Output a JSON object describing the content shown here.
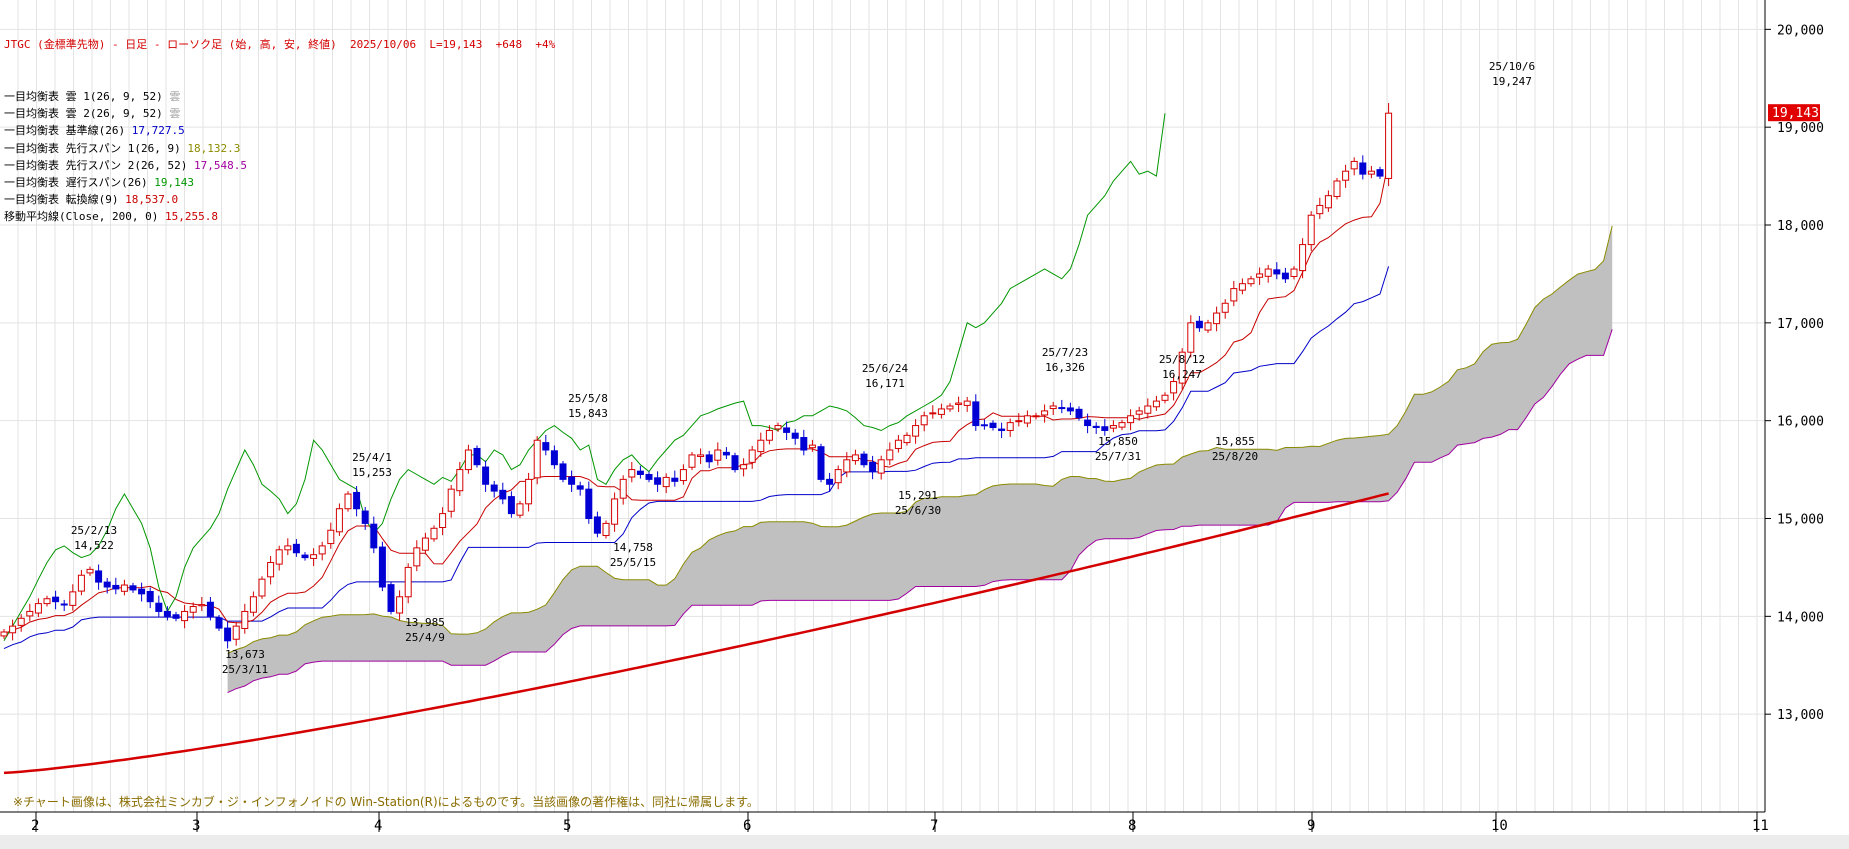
{
  "header": {
    "title": "JTGC (金標準先物) - 日足 - ローソク足 (始, 高, 安, 終値)  2025/10/06  L=19,143  +648  +4%"
  },
  "legend": [
    {
      "label": "一目均衡表 雲 1(26, 9, 52)",
      "value": "雲",
      "color": "#a0a0a0"
    },
    {
      "label": "一目均衡表 雲 2(26, 9, 52)",
      "value": "雲",
      "color": "#a0a0a0"
    },
    {
      "label": "一目均衡表 基準線(26)",
      "value": "17,727.5",
      "color": "#0000c8"
    },
    {
      "label": "一目均衡表 先行スパン 1(26, 9)",
      "value": "18,132.3",
      "color": "#8b8b00"
    },
    {
      "label": "一目均衡表 先行スパン 2(26, 52)",
      "value": "17,548.5",
      "color": "#a000a0"
    },
    {
      "label": "一目均衡表 遅行スパン(26)",
      "value": "19,143",
      "color": "#009600"
    },
    {
      "label": "一目均衡表 転換線(9)",
      "value": "18,537.0",
      "color": "#c80000"
    },
    {
      "label": "移動平均線(Close, 200, 0)",
      "value": "15,255.8",
      "color": "#c80000"
    }
  ],
  "footer_note": "※チャート画像は、株式会社ミンカブ・ジ・インフォノイドの Win-Station(R)によるものです。当該画像の著作権は、同社に帰属します。",
  "colors": {
    "bull": "#d40000",
    "bear": "#0000d4",
    "cloud": "#c0c0c0",
    "sma": "#d40000",
    "kijun": "#0000c8",
    "tenkan": "#c80000",
    "chikou": "#009600",
    "senkouA": "#8b8b00",
    "senkouB": "#a000a0"
  },
  "chart_data": {
    "type": "candlestick",
    "title": "JTGC (金標準先物) - 日足 - ローソク足 (始, 高, 安, 終値)",
    "ylim": [
      12000,
      20300
    ],
    "y_ticks": [
      "13,000",
      "14,000",
      "15,000",
      "16,000",
      "17,000",
      "18,000",
      "19,000",
      "20,000"
    ],
    "x_ticks": [
      "2",
      "3",
      "4",
      "5",
      "6",
      "7",
      "8",
      "9",
      "10",
      "11"
    ],
    "last_price_label": "19,143",
    "grid": true,
    "annotations": [
      {
        "date": "25/2/13",
        "value": "14,522",
        "pos": "above"
      },
      {
        "date": "25/3/11",
        "value": "13,673",
        "pos": "below"
      },
      {
        "date": "25/4/1",
        "value": "15,253",
        "pos": "above"
      },
      {
        "date": "25/4/9",
        "value": "13,985",
        "pos": "below"
      },
      {
        "date": "25/5/8",
        "value": "15,843",
        "pos": "above"
      },
      {
        "date": "25/5/15",
        "value": "14,758",
        "pos": "below"
      },
      {
        "date": "25/6/24",
        "value": "16,171",
        "pos": "above"
      },
      {
        "date": "25/6/30",
        "value": "15,291",
        "pos": "below"
      },
      {
        "date": "25/7/23",
        "value": "16,326",
        "pos": "above"
      },
      {
        "date": "25/7/31",
        "value": "15,850",
        "pos": "below"
      },
      {
        "date": "25/8/12",
        "value": "16,247",
        "pos": "above"
      },
      {
        "date": "25/8/20",
        "value": "15,855",
        "pos": "below"
      },
      {
        "date": "25/10/6",
        "value": "19,247",
        "pos": "above"
      }
    ],
    "close": [
      13840,
      13900,
      13980,
      14050,
      14130,
      14180,
      14150,
      14120,
      14250,
      14420,
      14480,
      14350,
      14300,
      14280,
      14320,
      14270,
      14230,
      14150,
      14050,
      14000,
      13980,
      14050,
      14100,
      14120,
      14000,
      13880,
      13750,
      13900,
      14050,
      14200,
      14380,
      14550,
      14680,
      14720,
      14650,
      14600,
      14630,
      14720,
      14880,
      15100,
      15250,
      15100,
      14950,
      14700,
      14300,
      14050,
      14200,
      14500,
      14700,
      14800,
      14900,
      15050,
      15300,
      15500,
      15700,
      15550,
      15350,
      15280,
      15200,
      15050,
      15150,
      15400,
      15800,
      15700,
      15550,
      15400,
      15350,
      15300,
      15000,
      14850,
      14950,
      15200,
      15400,
      15500,
      15450,
      15400,
      15350,
      15420,
      15380,
      15500,
      15650,
      15650,
      15580,
      15700,
      15650,
      15500,
      15550,
      15700,
      15800,
      15900,
      15950,
      15880,
      15820,
      15700,
      15750,
      15400,
      15350,
      15500,
      15600,
      15650,
      15550,
      15480,
      15600,
      15700,
      15800,
      15850,
      15950,
      16050,
      16080,
      16120,
      16150,
      16180,
      16200,
      15950,
      15950,
      15930,
      15900,
      15980,
      16000,
      16050,
      16050,
      16100,
      16150,
      16130,
      16100,
      16030,
      15950,
      15930,
      15900,
      15950,
      15980,
      16050,
      16100,
      16150,
      16200,
      16260,
      16400,
      16700,
      17000,
      16950,
      17000,
      17100,
      17200,
      17350,
      17400,
      17450,
      17500,
      17550,
      17500,
      17450,
      17550,
      17800,
      18100,
      18200,
      18300,
      18450,
      18550,
      18650,
      18520,
      18550,
      18500,
      19143
    ]
  }
}
